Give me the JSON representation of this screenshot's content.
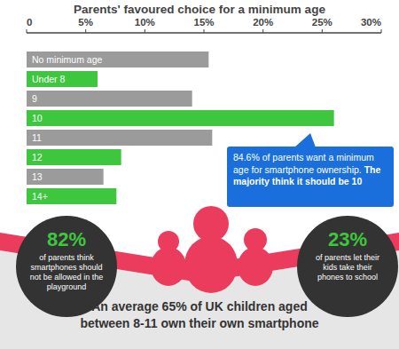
{
  "chart_data": {
    "type": "bar",
    "title": "Parents' favoured choice for a minimum age",
    "orientation": "horizontal",
    "categories": [
      "No minimum age",
      "Under 8",
      "9",
      "10",
      "11",
      "12",
      "13",
      "14+"
    ],
    "values": [
      15.4,
      6,
      14,
      26,
      15.7,
      8,
      6.5,
      7.6
    ],
    "colors": [
      "#9b9b9b",
      "#3ec63e",
      "#9b9b9b",
      "#3ec63e",
      "#9b9b9b",
      "#3ec63e",
      "#9b9b9b",
      "#3ec63e"
    ],
    "xlim": [
      0,
      30
    ],
    "xticks": [
      0,
      {
        "value": 5,
        "label": "5%"
      },
      {
        "value": 10,
        "label": "10%"
      },
      {
        "value": 15,
        "label": "15%"
      },
      {
        "value": 20,
        "label": "20%"
      },
      {
        "value": 25,
        "label": "25%"
      },
      {
        "value": 30,
        "label": "30%"
      }
    ],
    "grid": false,
    "callout": {
      "text": "84.6% of parents want a minimum age for smartphone ownership.",
      "bold": "The majority think it should be 10"
    },
    "stats": [
      {
        "label": "82%",
        "text": "of parents think smartphones should not be allowed in the playground"
      },
      {
        "label": "23%",
        "text": "of parents let their kids take their phones to school"
      }
    ],
    "footer": "An average 65% of UK children aged between 8-11 own their own smartphone"
  }
}
